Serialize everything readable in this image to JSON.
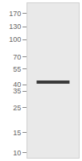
{
  "chart_data": {
    "type": "blot",
    "ylim": [
      9,
      210
    ],
    "yticks": [
      170,
      130,
      100,
      70,
      55,
      40,
      35,
      25,
      15,
      10
    ],
    "log": "y",
    "bands": [
      42
    ],
    "color": "#3a3a3a"
  }
}
